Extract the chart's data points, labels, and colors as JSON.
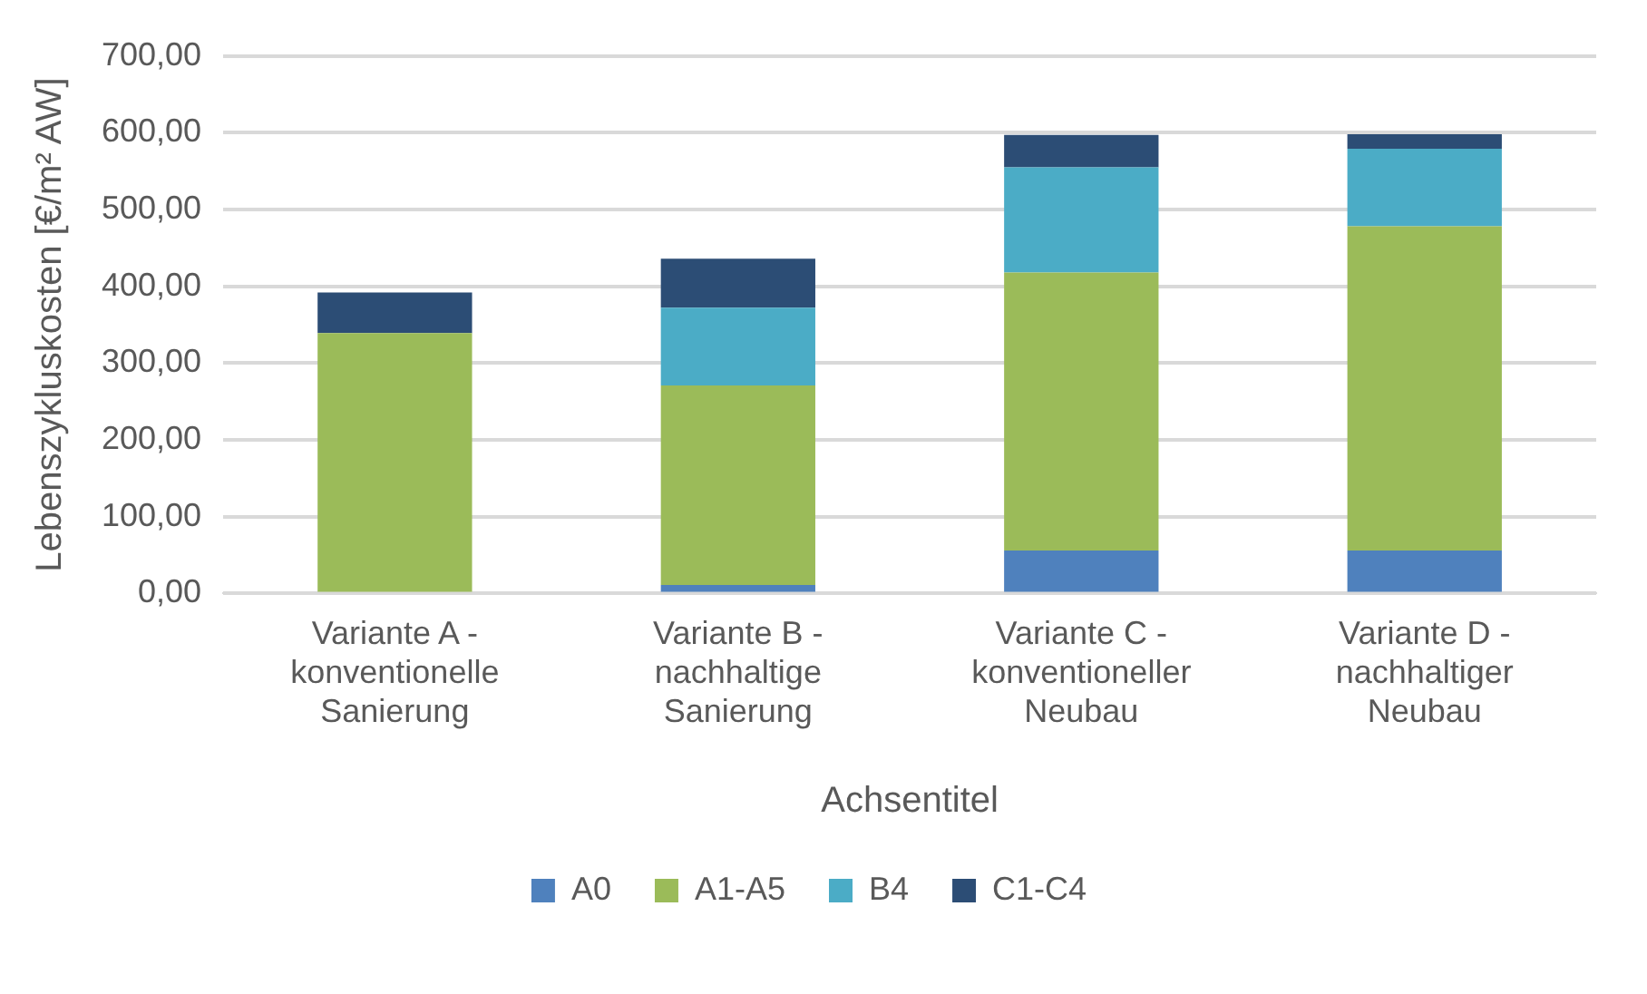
{
  "chart_data": {
    "type": "bar",
    "stacked": true,
    "xlabel": "Achsentitel",
    "ylabel": "Lebenszykluskosten [€/m² AW]",
    "categories": [
      "Variante A - konventionelle Sanierung",
      "Variante B - nachhaltige Sanierung",
      "Variante C - konventioneller Neubau",
      "Variante D - nachhaltiger Neubau"
    ],
    "series": [
      {
        "name": "A0",
        "color": "#4f81bd",
        "values": [
          0,
          11,
          56,
          56
        ]
      },
      {
        "name": "A1-A5",
        "color": "#9bbb59",
        "values": [
          339,
          260,
          362,
          422
        ]
      },
      {
        "name": "B4",
        "color": "#4bacc6",
        "values": [
          0,
          101,
          137,
          101
        ]
      },
      {
        "name": "C1-C4",
        "color": "#2c4d75",
        "values": [
          53,
          64,
          42,
          19
        ]
      }
    ],
    "ylim": [
      0,
      700
    ],
    "yticks": [
      {
        "value": 0,
        "label": "0,00"
      },
      {
        "value": 100,
        "label": "100,00"
      },
      {
        "value": 200,
        "label": "200,00"
      },
      {
        "value": 300,
        "label": "300,00"
      },
      {
        "value": 400,
        "label": "400,00"
      },
      {
        "value": 500,
        "label": "500,00"
      },
      {
        "value": 600,
        "label": "600,00"
      },
      {
        "value": 700,
        "label": "700,00"
      }
    ],
    "grid": "y",
    "legend": "bottom"
  }
}
